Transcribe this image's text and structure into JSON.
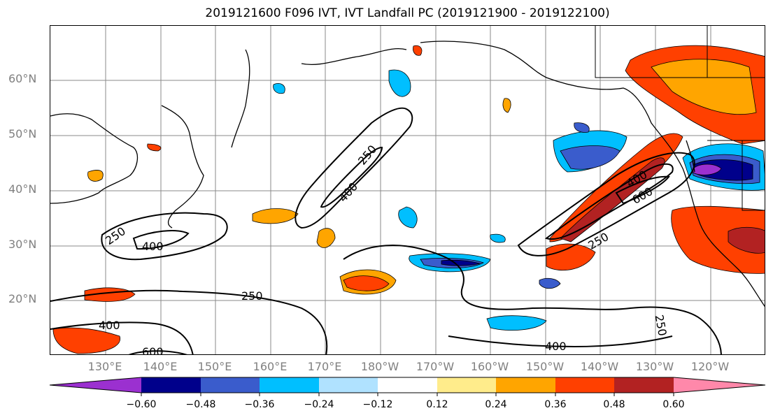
{
  "title": "2019121600 F096 IVT, IVT Landfall PC (2019121900 - 2019122100)",
  "lat_labels": [
    "60°N",
    "50°N",
    "40°N",
    "30°N",
    "20°N"
  ],
  "lon_labels": [
    "130°E",
    "140°E",
    "150°E",
    "160°E",
    "170°E",
    "180°W",
    "170°W",
    "160°W",
    "150°W",
    "140°W",
    "130°W",
    "120°W"
  ],
  "contour_labels": [
    "250",
    "400",
    "250",
    "400",
    "250",
    "400",
    "600",
    "400",
    "600",
    "250",
    "400",
    "250"
  ],
  "colorbar": {
    "ticks": [
      "−0.60",
      "−0.48",
      "−0.36",
      "−0.24",
      "−0.12",
      "0.12",
      "0.24",
      "0.36",
      "0.48",
      "0.60"
    ],
    "colors": [
      "#9b30d0",
      "#00008b",
      "#3a5ccc",
      "#00bfff",
      "#b0e2ff",
      "#ffffff",
      "#ffec8b",
      "#ffa500",
      "#ff4000",
      "#b22222",
      "#ff88aa"
    ]
  }
}
